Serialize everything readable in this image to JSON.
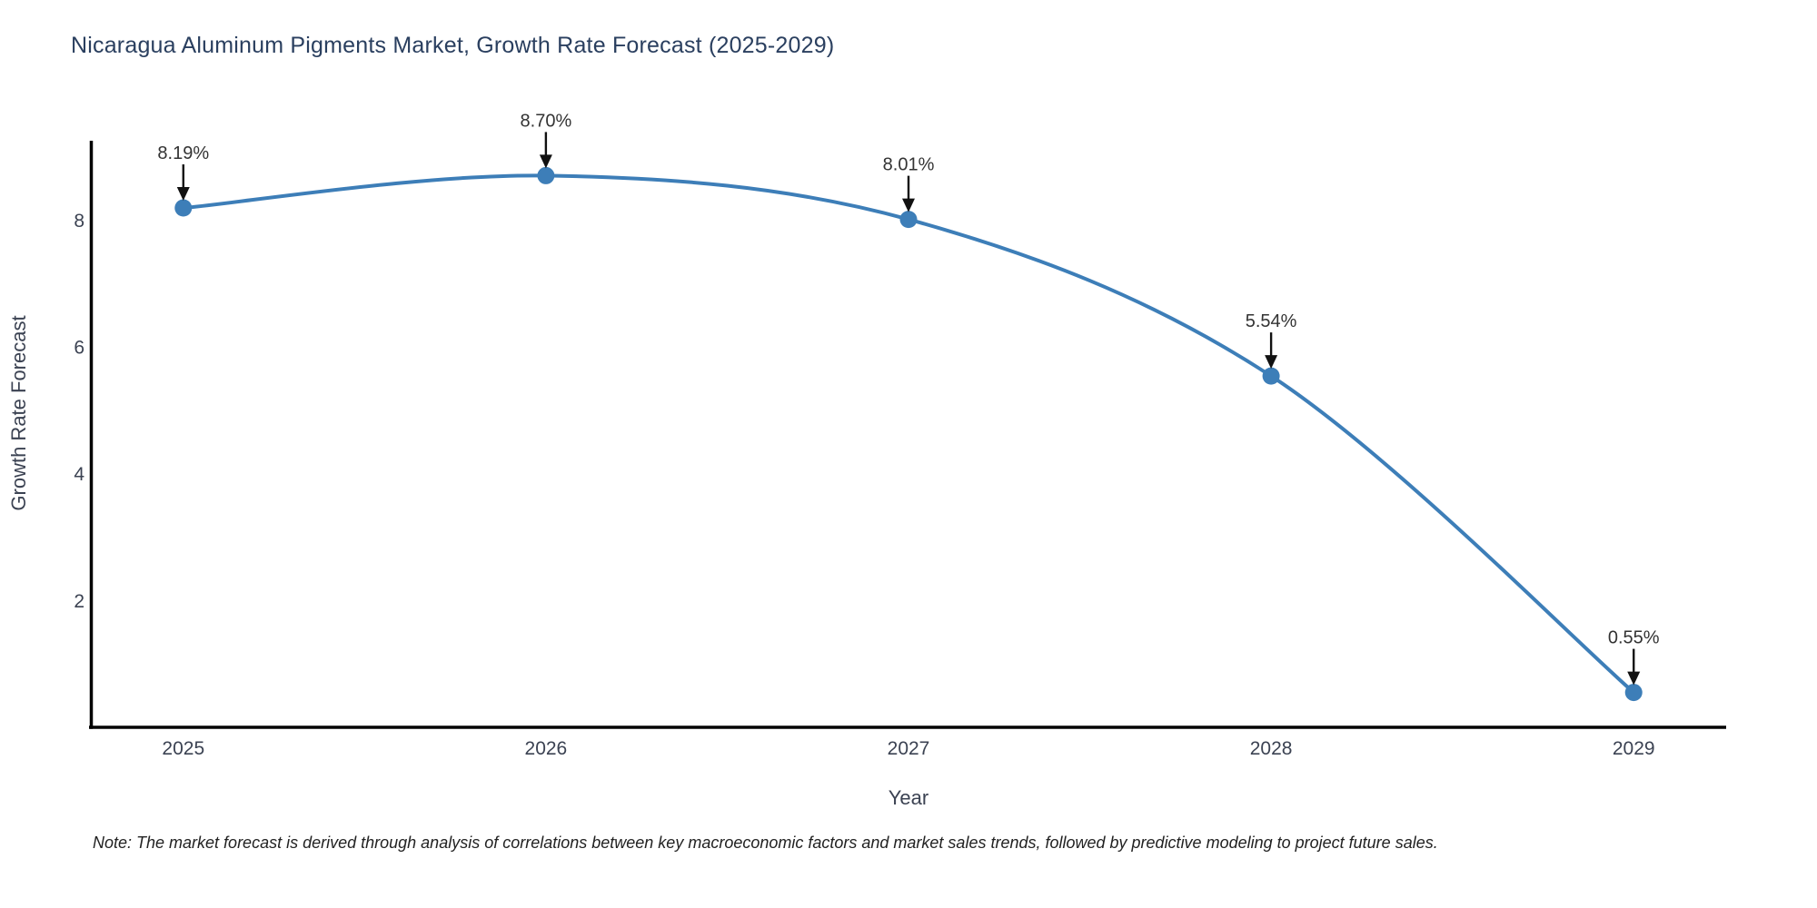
{
  "chart_data": {
    "type": "line",
    "title": "Nicaragua Aluminum Pigments Market, Growth Rate Forecast (2025-2029)",
    "xlabel": "Year",
    "ylabel": "Growth Rate Forecast",
    "x": [
      2025,
      2026,
      2027,
      2028,
      2029
    ],
    "series": [
      {
        "name": "Growth Rate Forecast",
        "values": [
          8.19,
          8.7,
          8.01,
          5.54,
          0.55
        ],
        "point_labels": [
          "8.19%",
          "8.70%",
          "8.01%",
          "5.54%",
          "0.55%"
        ]
      }
    ],
    "x_tick_labels": [
      "2025",
      "2026",
      "2027",
      "2028",
      "2029"
    ],
    "y_ticks": [
      2,
      4,
      6,
      8
    ],
    "xlim": [
      2024.745,
      2029.255
    ],
    "ylim": [
      0,
      9.25
    ],
    "grid": false,
    "legend_position": "none",
    "line_shape": "spline",
    "line_color": "#3d7eb8",
    "marker_color": "#3d7eb8",
    "annotation_arrow_color": "#111111"
  },
  "note": "Note: The market forecast is derived through analysis of correlations between key macroeconomic factors and market sales trends, followed by predictive modeling to project future sales.",
  "colors": {
    "background": "#ffffff",
    "title_text": "#2a3f5f",
    "tick_text": "#3b4252",
    "annotation_text": "#333333",
    "axis_line": "#000000"
  }
}
